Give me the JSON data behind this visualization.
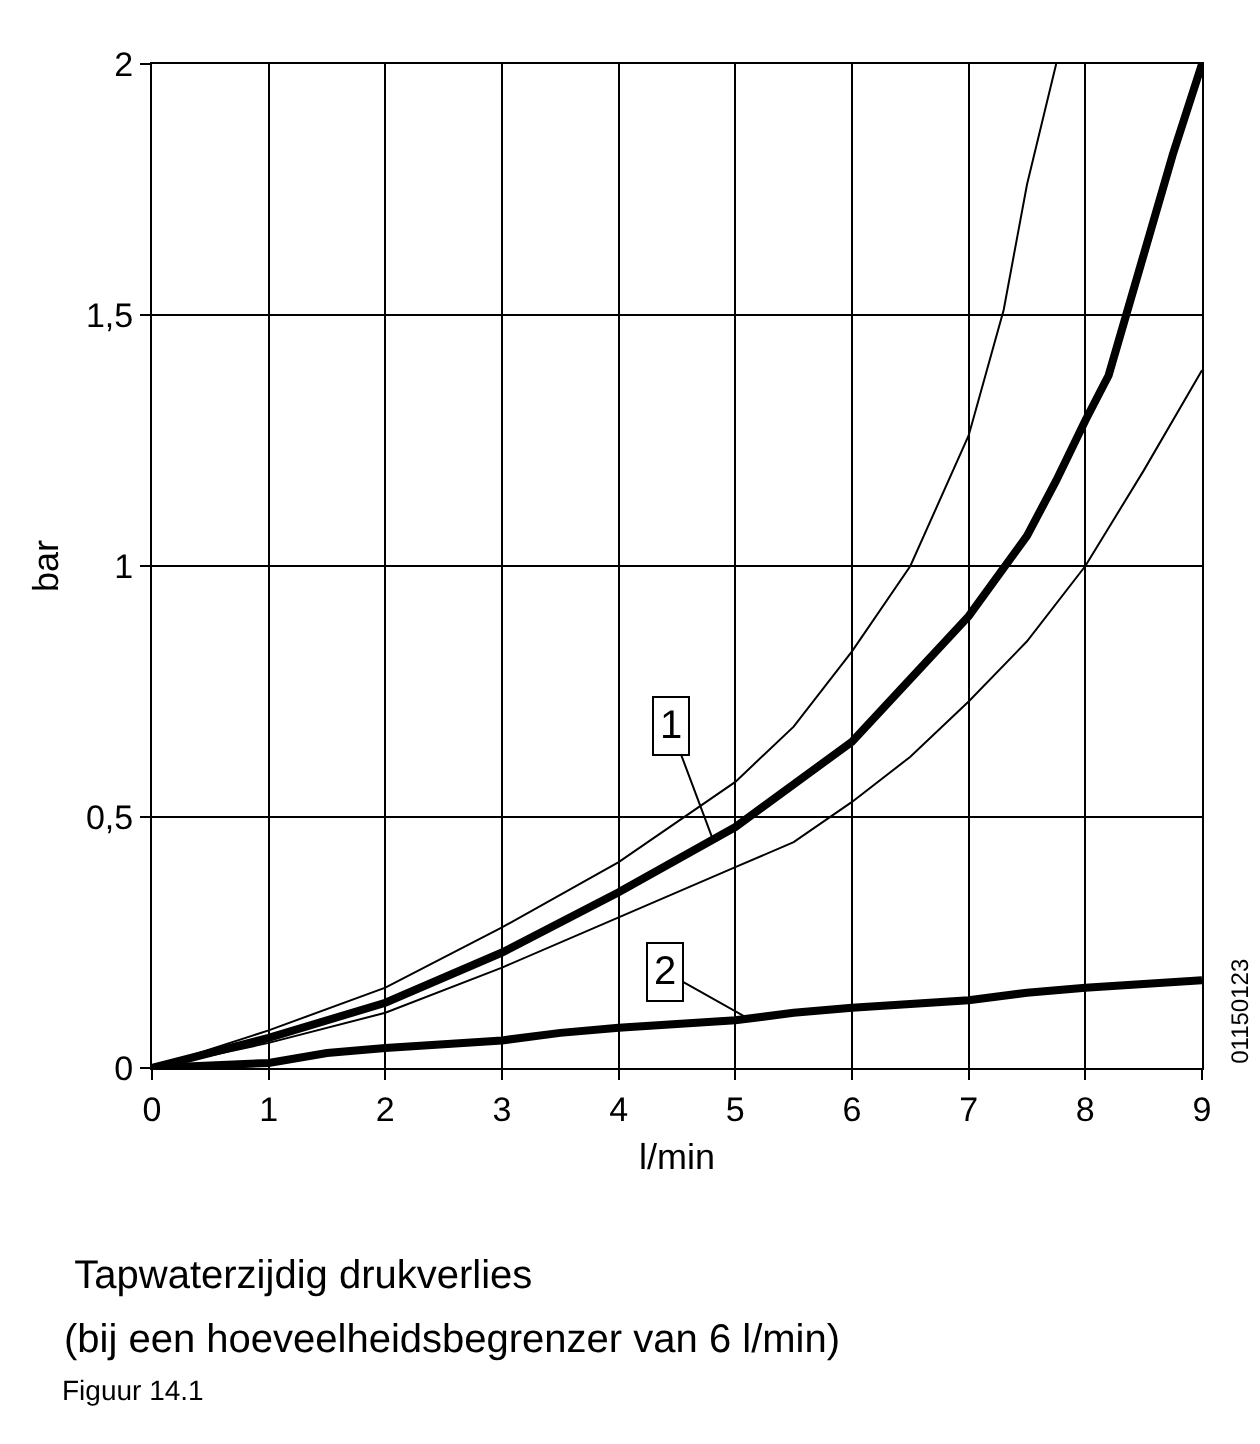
{
  "chart_data": {
    "type": "line",
    "title": "Tapwaterzijdig drukverlies",
    "subtitle": "(bij een hoeveelheidsbegrenzer van 6 l/min)",
    "xlabel": "l/min",
    "ylabel": "bar",
    "series": [
      {
        "color": "#000000",
        "x": [
          0,
          1,
          2,
          3,
          4,
          5,
          6,
          7,
          7.5,
          7.75,
          8,
          8.2,
          8.5,
          8.75,
          9
        ],
        "values": [
          0,
          0.06,
          0.13,
          0.23,
          0.35,
          0.48,
          0.65,
          0.9,
          1.06,
          1.17,
          1.29,
          1.38,
          1.62,
          1.82,
          2.0
        ]
      },
      {
        "color": "#000000",
        "x": [
          0,
          1,
          2,
          3,
          4,
          5,
          5.5,
          6,
          6.5,
          7,
          7.3,
          7.5,
          7.75
        ],
        "values": [
          0,
          0.075,
          0.16,
          0.28,
          0.41,
          0.57,
          0.68,
          0.83,
          1.0,
          1.26,
          1.51,
          1.76,
          2.0
        ]
      },
      {
        "color": "#000000",
        "x": [
          0,
          1,
          2,
          3,
          4,
          5,
          5.5,
          6,
          6.5,
          7,
          7.5,
          8,
          8.5,
          9
        ],
        "values": [
          0,
          0.05,
          0.11,
          0.2,
          0.3,
          0.4,
          0.45,
          0.53,
          0.62,
          0.73,
          0.85,
          1.0,
          1.19,
          1.39
        ]
      },
      {
        "color": "#000000",
        "x": [
          0,
          1,
          1.5,
          2,
          3,
          3.5,
          4,
          5,
          5.5,
          6,
          7,
          7.5,
          8,
          9
        ],
        "values": [
          0,
          0.01,
          0.03,
          0.04,
          0.055,
          0.07,
          0.08,
          0.095,
          0.11,
          0.12,
          0.135,
          0.15,
          0.16,
          0.175
        ]
      }
    ],
    "xlim": [
      0,
      9
    ],
    "xticks": [
      0,
      1,
      2,
      3,
      4,
      5,
      6,
      7,
      8,
      9
    ],
    "ylim": [
      0,
      2
    ],
    "yticks": [
      0,
      {
        "value": 0.5,
        "label": "0,5"
      },
      1,
      {
        "value": 1.5,
        "label": "1,5"
      },
      2
    ],
    "grid": true,
    "marker": "none",
    "line_style": "solid",
    "annotations": [
      {
        "text": "1",
        "x": 4.8,
        "y": 0.46
      },
      {
        "text": "2",
        "x": 5.1,
        "y": 0.1
      },
      "01150123",
      "Figuur 14.1"
    ]
  }
}
